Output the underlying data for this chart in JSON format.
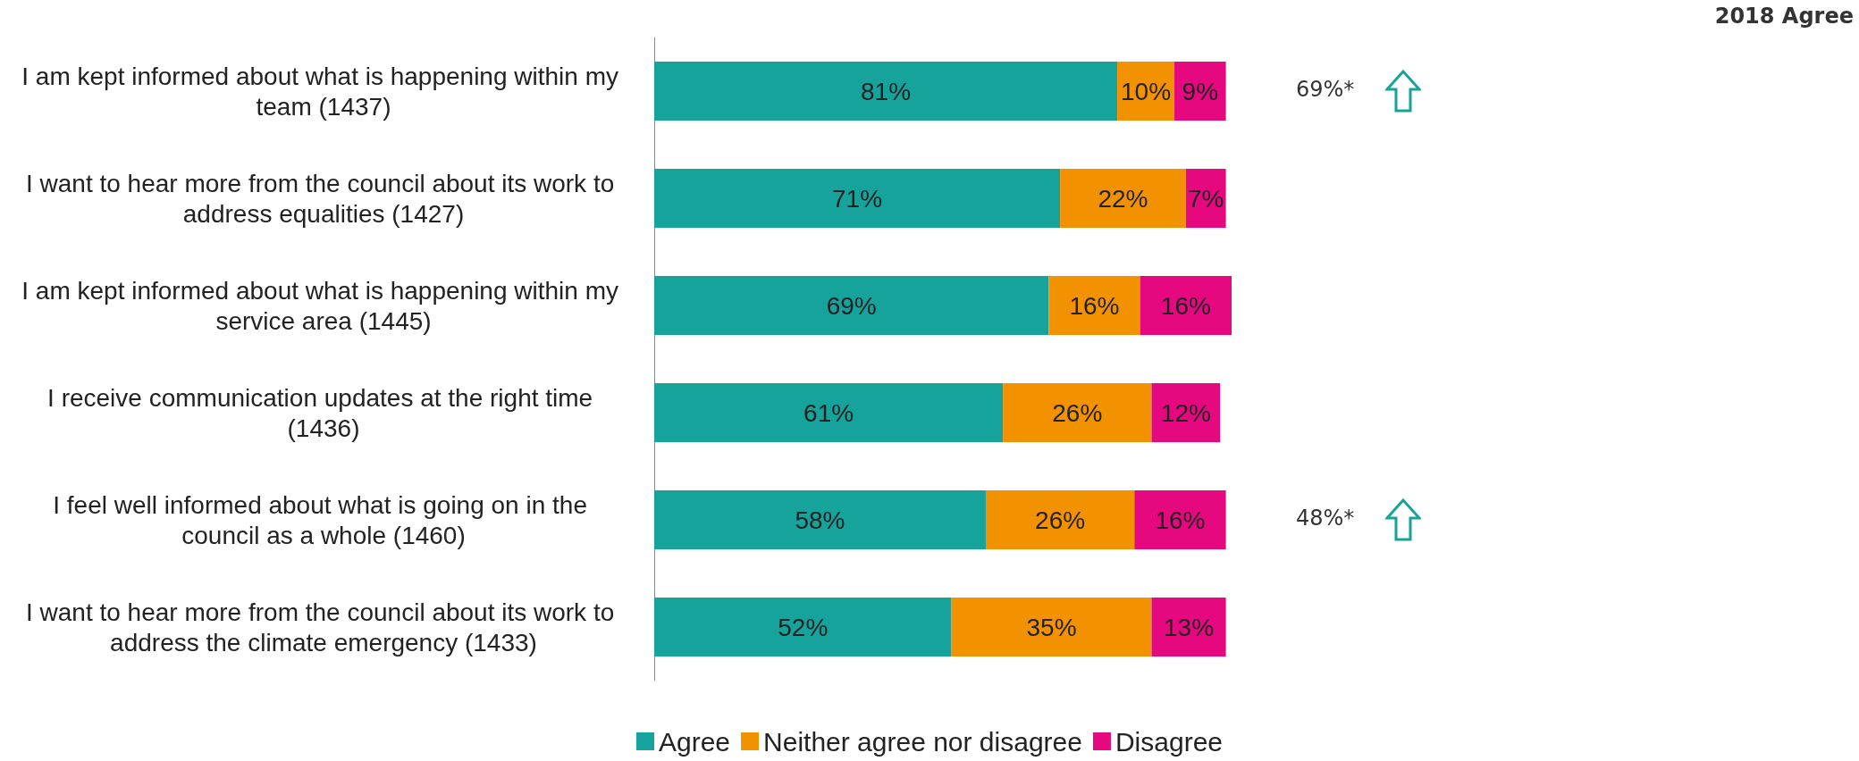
{
  "chart_data": {
    "type": "bar",
    "orientation": "horizontal",
    "stacked": true,
    "legend": "bottom",
    "grid": false,
    "tick_labels": "y",
    "categories": [
      "I am kept informed about what is happening within my team (1437)",
      "I want to hear more from the council about its work to address equalities (1427)",
      "I am kept informed about what is happening within my service area (1445)",
      "I receive communication updates at the right time (1436)",
      "I feel well informed about what is going on in the council as a whole (1460)",
      "I want to hear more from the council about its work to address the climate emergency (1433)"
    ],
    "series": [
      {
        "name": "Agree",
        "color": "#16a39c",
        "values": [
          81,
          71,
          69,
          61,
          58,
          52
        ],
        "value_labels": [
          "81%",
          "71%",
          "69%",
          "61%",
          "58%",
          "52%"
        ]
      },
      {
        "name": "Neither agree nor disagree",
        "color": "#f39200",
        "values": [
          10,
          22,
          16,
          26,
          26,
          35
        ],
        "value_labels": [
          "10%",
          "22%",
          "16%",
          "26%",
          "26%",
          "35%"
        ]
      },
      {
        "name": "Disagree",
        "color": "#e5087e",
        "values": [
          9,
          7,
          16,
          12,
          16,
          13
        ],
        "value_labels": [
          "9%",
          "7%",
          "16%",
          "12%",
          "16%",
          "13%"
        ]
      }
    ],
    "annotations": [
      "2018 Agree",
      "69%*",
      "48%*"
    ]
  }
}
